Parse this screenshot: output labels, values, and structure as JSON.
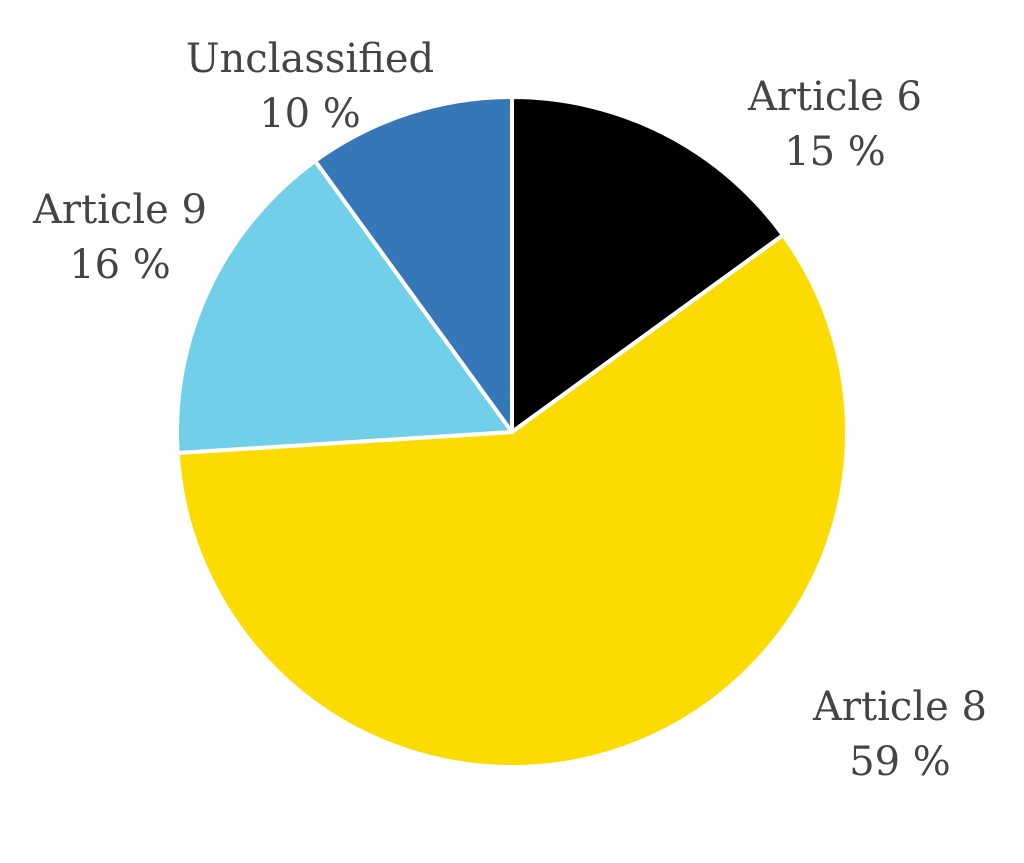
{
  "chart_data": {
    "type": "pie",
    "categories": [
      "Article 6",
      "Article 8",
      "Article 9",
      "Unclassified"
    ],
    "values": [
      15,
      59,
      16,
      10
    ],
    "value_labels": [
      "15 %",
      "59 %",
      "16 %",
      "10 %"
    ],
    "colors": [
      "#000000",
      "#fcdc00",
      "#72cfe9",
      "#3677b8"
    ]
  }
}
